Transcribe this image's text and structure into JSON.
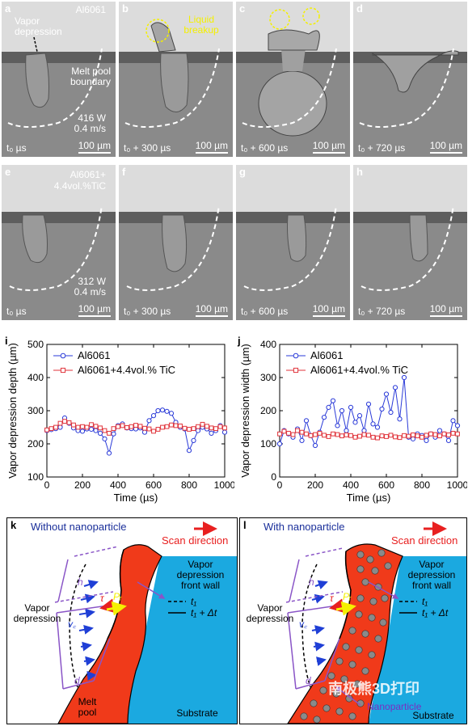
{
  "panels": [
    {
      "label": "a",
      "time": "t₀  µs",
      "scale": "100 µm"
    },
    {
      "label": "b",
      "time": "t₀ + 300 µs",
      "scale": "100 µm"
    },
    {
      "label": "c",
      "time": "t₀ + 600 µs",
      "scale": "100 µm"
    },
    {
      "label": "d",
      "time": "t₀ + 720 µs",
      "scale": "100 µm"
    },
    {
      "label": "e",
      "time": "t₀  µs",
      "scale": "100 µm"
    },
    {
      "label": "f",
      "time": "t₀ + 300 µs",
      "scale": "100 µm"
    },
    {
      "label": "g",
      "time": "t₀ + 600 µs",
      "scale": "100 µm"
    },
    {
      "label": "h",
      "time": "t₀ + 720 µs",
      "scale": "100 µm"
    }
  ],
  "annotations": {
    "material_a": "Al6061",
    "vapor_depression": "Vapor depression",
    "melt_pool_boundary": "Melt pool boundary",
    "power_a": "416 W",
    "speed_a": "0.4 m/s",
    "liquid_breakup": "Liquid breakup",
    "material_e_line1": "Al6061+",
    "material_e_line2": "4.4vol.%TiC",
    "power_e": "312 W",
    "speed_e": "0.4 m/s"
  },
  "chart_data": [
    {
      "panel": "i",
      "type": "line",
      "xlabel": "Time (µs)",
      "ylabel": "Vapor depression depth (µm)",
      "xlim": [
        0,
        1000
      ],
      "ylim": [
        100,
        500
      ],
      "xticks": [
        0,
        200,
        400,
        600,
        800,
        1000
      ],
      "yticks": [
        100,
        200,
        300,
        400,
        500
      ],
      "x": [
        0,
        25,
        50,
        75,
        100,
        125,
        150,
        175,
        200,
        225,
        250,
        275,
        300,
        325,
        350,
        375,
        400,
        425,
        450,
        475,
        500,
        525,
        550,
        575,
        600,
        625,
        650,
        675,
        700,
        725,
        750,
        775,
        800,
        825,
        850,
        875,
        900,
        925,
        950,
        975,
        1000
      ],
      "series": [
        {
          "name": "Al6061",
          "color": "#2a3ad8",
          "marker": "circle",
          "values": [
            240,
            243,
            246,
            250,
            278,
            262,
            248,
            240,
            238,
            245,
            244,
            240,
            232,
            215,
            172,
            230,
            255,
            260,
            248,
            246,
            245,
            248,
            235,
            270,
            285,
            300,
            302,
            298,
            292,
            265,
            250,
            245,
            180,
            210,
            240,
            250,
            245,
            232,
            240,
            255,
            235
          ]
        },
        {
          "name": "Al6061+4.4vol.% TiC",
          "color": "#e0333a",
          "marker": "square",
          "values": [
            242,
            246,
            250,
            262,
            268,
            264,
            257,
            250,
            252,
            250,
            258,
            253,
            248,
            240,
            232,
            246,
            252,
            255,
            249,
            252,
            256,
            253,
            247,
            245,
            238,
            244,
            250,
            252,
            257,
            255,
            254,
            247,
            244,
            246,
            252,
            259,
            253,
            248,
            246,
            252,
            248
          ]
        }
      ]
    },
    {
      "panel": "j",
      "type": "line",
      "xlabel": "Time (µs)",
      "ylabel": "Vapor depression width (µm)",
      "xlim": [
        0,
        1000
      ],
      "ylim": [
        0,
        400
      ],
      "xticks": [
        0,
        200,
        400,
        600,
        800,
        1000
      ],
      "yticks": [
        0,
        100,
        200,
        300,
        400
      ],
      "x": [
        0,
        25,
        50,
        75,
        100,
        125,
        150,
        175,
        200,
        225,
        250,
        275,
        300,
        325,
        350,
        375,
        400,
        425,
        450,
        475,
        500,
        525,
        550,
        575,
        600,
        625,
        650,
        675,
        700,
        725,
        750,
        775,
        800,
        825,
        850,
        875,
        900,
        925,
        950,
        975,
        1000
      ],
      "series": [
        {
          "name": "Al6061",
          "color": "#2a3ad8",
          "marker": "circle",
          "values": [
            100,
            140,
            130,
            120,
            145,
            110,
            170,
            125,
            95,
            135,
            180,
            210,
            230,
            155,
            200,
            140,
            210,
            165,
            185,
            140,
            220,
            160,
            150,
            205,
            250,
            195,
            270,
            175,
            300,
            120,
            115,
            130,
            125,
            110,
            130,
            120,
            140,
            130,
            110,
            170,
            155
          ]
        },
        {
          "name": "Al6061+4.4vol.% TiC",
          "color": "#e0333a",
          "marker": "square",
          "values": [
            130,
            138,
            132,
            128,
            140,
            135,
            130,
            125,
            128,
            132,
            126,
            122,
            130,
            128,
            124,
            127,
            125,
            120,
            123,
            128,
            126,
            120,
            118,
            124,
            122,
            126,
            121,
            119,
            125,
            123,
            127,
            124,
            120,
            126,
            130,
            128,
            124,
            130,
            127,
            132,
            130
          ]
        }
      ]
    }
  ],
  "schematic_k": {
    "label": "k",
    "title": "Without nanoparticle",
    "scan_direction": "Scan direction",
    "front_wall_line1": "Vapor",
    "front_wall_line2": "depression",
    "front_wall_line3": "front wall",
    "legend_t1": "t₁",
    "legend_t1dt": "t₁ + Δt",
    "vapor_line1": "Vapor",
    "vapor_line2": "depression",
    "melt_line1": "Melt",
    "melt_line2": "pool",
    "substrate": "Substrate",
    "sym_h": "h",
    "sym_d": "d",
    "sym_tau": "τ",
    "sym_pr": "Pᵣ",
    "sym_vc": "v꜀"
  },
  "schematic_l": {
    "label": "l",
    "title": "With nanoparticle",
    "scan_direction": "Scan direction",
    "front_wall_line1": "Vapor",
    "front_wall_line2": "depression",
    "front_wall_line3": "front wall",
    "legend_t1": "t₁",
    "legend_t1dt": "t₁ + Δt",
    "vapor_line1": "Vapor",
    "vapor_line2": "depression",
    "nanoparticle": "Nanoparticle",
    "substrate": "Substrate",
    "sym_h": "h",
    "sym_d": "d",
    "sym_tau": "τ",
    "sym_pr": "Pᵣ",
    "sym_vc": "v꜀",
    "watermark": "南极熊3D打印"
  },
  "colors": {
    "melt": "#f03a1a",
    "substrate": "#1ba9e0",
    "purple": "#8a55c7",
    "blue_arrow": "#1f3fd6",
    "red_arrow": "#e82020",
    "yellow": "#f4f000",
    "title_blue": "#1a2f9a"
  }
}
